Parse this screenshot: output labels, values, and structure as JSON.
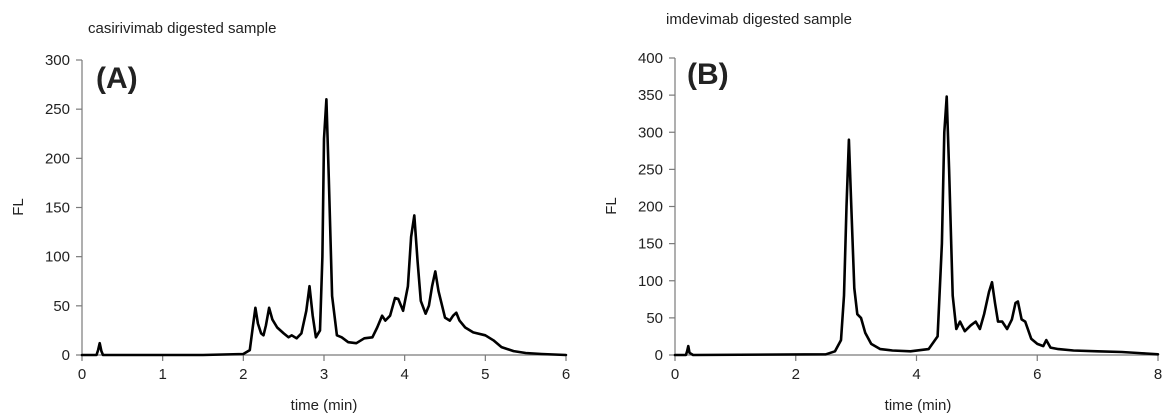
{
  "chart_data": [
    {
      "type": "line",
      "panel_label": "(A)",
      "title": "casirivimab digested sample",
      "xlabel": "time (min)",
      "ylabel": "FL",
      "xlim": [
        0,
        6
      ],
      "ylim": [
        0,
        300
      ],
      "xticks": [
        0,
        1,
        2,
        3,
        4,
        5,
        6
      ],
      "yticks": [
        0,
        50,
        100,
        150,
        200,
        250,
        300
      ],
      "grid": false,
      "line_color": "#000000",
      "series": [
        {
          "x": [
            0,
            0.18,
            0.2,
            0.22,
            0.24,
            0.26,
            0.3,
            1.5,
            2.0,
            2.08,
            2.12,
            2.15,
            2.18,
            2.22,
            2.25,
            2.28,
            2.32,
            2.36,
            2.42,
            2.5,
            2.56,
            2.6,
            2.66,
            2.72,
            2.78,
            2.82,
            2.86,
            2.9,
            2.95,
            2.98,
            3.0,
            3.03,
            3.06,
            3.1,
            3.16,
            3.22,
            3.3,
            3.4,
            3.5,
            3.6,
            3.66,
            3.72,
            3.76,
            3.82,
            3.88,
            3.92,
            3.98,
            4.04,
            4.08,
            4.12,
            4.16,
            4.2,
            4.26,
            4.3,
            4.34,
            4.38,
            4.42,
            4.5,
            4.56,
            4.6,
            4.64,
            4.68,
            4.75,
            4.85,
            5.0,
            5.1,
            5.2,
            5.35,
            5.5,
            5.7,
            6.0
          ],
          "y": [
            0,
            0,
            5,
            12,
            4,
            0,
            0,
            0,
            1,
            5,
            30,
            48,
            32,
            22,
            20,
            30,
            48,
            36,
            28,
            22,
            18,
            20,
            17,
            22,
            45,
            70,
            40,
            18,
            25,
            100,
            220,
            260,
            180,
            60,
            20,
            18,
            13,
            12,
            17,
            18,
            28,
            40,
            35,
            40,
            58,
            57,
            45,
            70,
            120,
            142,
            95,
            55,
            42,
            50,
            70,
            85,
            65,
            38,
            35,
            40,
            43,
            35,
            28,
            23,
            20,
            15,
            8,
            4,
            2,
            1,
            0
          ]
        }
      ]
    },
    {
      "type": "line",
      "panel_label": "(B)",
      "title": "imdevimab digested sample",
      "xlabel": "time (min)",
      "ylabel": "FL",
      "xlim": [
        0,
        8
      ],
      "ylim": [
        0,
        400
      ],
      "xticks": [
        0,
        2,
        4,
        6,
        8
      ],
      "yticks": [
        0,
        50,
        100,
        150,
        200,
        250,
        300,
        350,
        400
      ],
      "grid": false,
      "line_color": "#000000",
      "series": [
        {
          "x": [
            0,
            0.18,
            0.2,
            0.22,
            0.24,
            0.3,
            2.5,
            2.65,
            2.75,
            2.8,
            2.84,
            2.88,
            2.92,
            2.97,
            3.02,
            3.08,
            3.15,
            3.25,
            3.4,
            3.6,
            3.9,
            4.2,
            4.35,
            4.42,
            4.46,
            4.5,
            4.54,
            4.6,
            4.66,
            4.72,
            4.8,
            4.9,
            4.98,
            5.05,
            5.12,
            5.2,
            5.25,
            5.3,
            5.35,
            5.42,
            5.5,
            5.58,
            5.64,
            5.68,
            5.74,
            5.8,
            5.9,
            6.0,
            6.1,
            6.15,
            6.22,
            6.35,
            6.6,
            7.0,
            7.4,
            7.8,
            8.0
          ],
          "y": [
            0,
            0,
            5,
            12,
            3,
            0,
            1,
            5,
            20,
            80,
            200,
            290,
            200,
            90,
            55,
            50,
            30,
            15,
            8,
            6,
            5,
            8,
            25,
            150,
            300,
            348,
            250,
            80,
            35,
            45,
            32,
            40,
            45,
            35,
            55,
            85,
            98,
            70,
            45,
            45,
            35,
            48,
            70,
            72,
            48,
            45,
            22,
            15,
            12,
            20,
            10,
            8,
            6,
            5,
            4,
            2,
            1
          ]
        }
      ]
    }
  ]
}
